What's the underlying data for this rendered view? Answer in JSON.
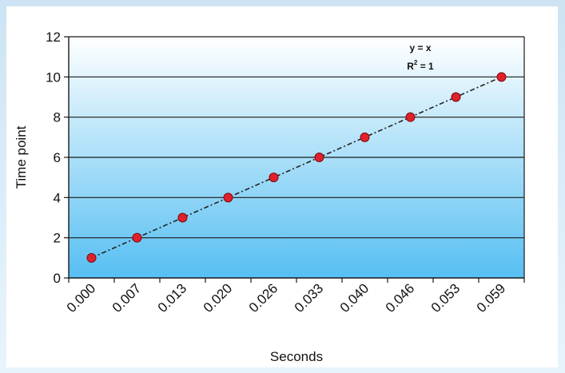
{
  "chart_data": {
    "type": "scatter",
    "x": [
      1,
      2,
      3,
      4,
      5,
      6,
      7,
      8,
      9,
      10
    ],
    "values": [
      1,
      2,
      3,
      4,
      5,
      6,
      7,
      8,
      9,
      10
    ],
    "xtick_labels": [
      "0.000",
      "0.007",
      "0.013",
      "0.020",
      "0.026",
      "0.033",
      "0.040",
      "0.046",
      "0.053",
      "0.059"
    ],
    "yticks": [
      "0",
      "2",
      "4",
      "6",
      "8",
      "10",
      "12"
    ],
    "xlabel": "Seconds",
    "ylabel": "Time point",
    "ylim": [
      0,
      12
    ],
    "trendline": {
      "style": "dash-dot",
      "equation": "y = x",
      "r_squared_prefix": "R",
      "r_squared_sup": "2",
      "r_squared_suffix": " = 1"
    },
    "grid": true,
    "marker_color": "#e0202a",
    "background_top": "#ffffff",
    "background_bottom": "#56bff2"
  }
}
